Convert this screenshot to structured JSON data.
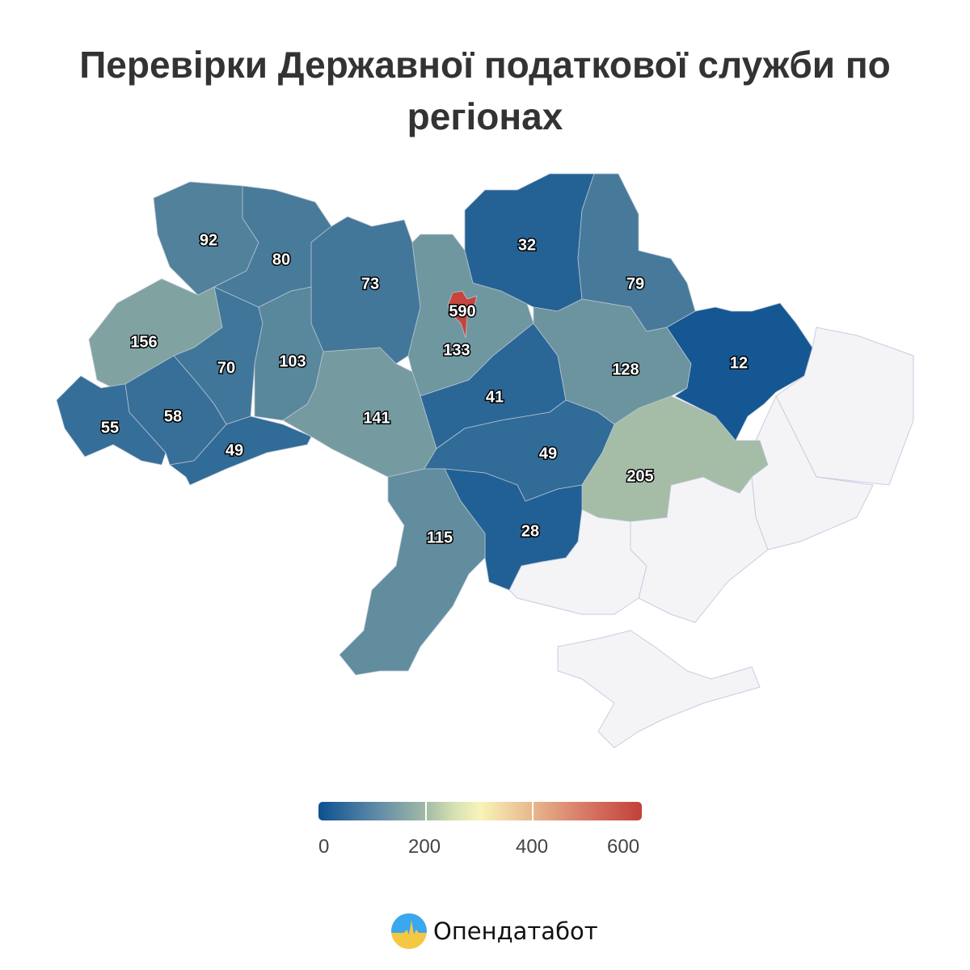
{
  "title": "Перевірки Державної податкової служби по регіонах",
  "regions": [
    {
      "value": 92
    },
    {
      "value": 80
    },
    {
      "value": 73
    },
    {
      "value": 133
    },
    {
      "value": 590
    },
    {
      "value": 32
    },
    {
      "value": 79
    },
    {
      "value": 156
    },
    {
      "value": 70
    },
    {
      "value": 103
    },
    {
      "value": 55
    },
    {
      "value": 58
    },
    {
      "value": 49
    },
    {
      "value": 141
    },
    {
      "value": 41
    },
    {
      "value": 128
    },
    {
      "value": 12
    },
    {
      "value": 49
    },
    {
      "value": 205
    },
    {
      "value": 28
    },
    {
      "value": 115
    }
  ],
  "no_data_color": "#f4f4f6",
  "legend": {
    "ticks": [
      "0",
      "200",
      "400",
      "600"
    ],
    "range": [
      0,
      600
    ],
    "colors": [
      "#0c5192",
      "#a1baa6",
      "#f8f4b8",
      "#e8b88c",
      "#c2403a"
    ]
  },
  "logo": {
    "text": "Опендатабот"
  }
}
